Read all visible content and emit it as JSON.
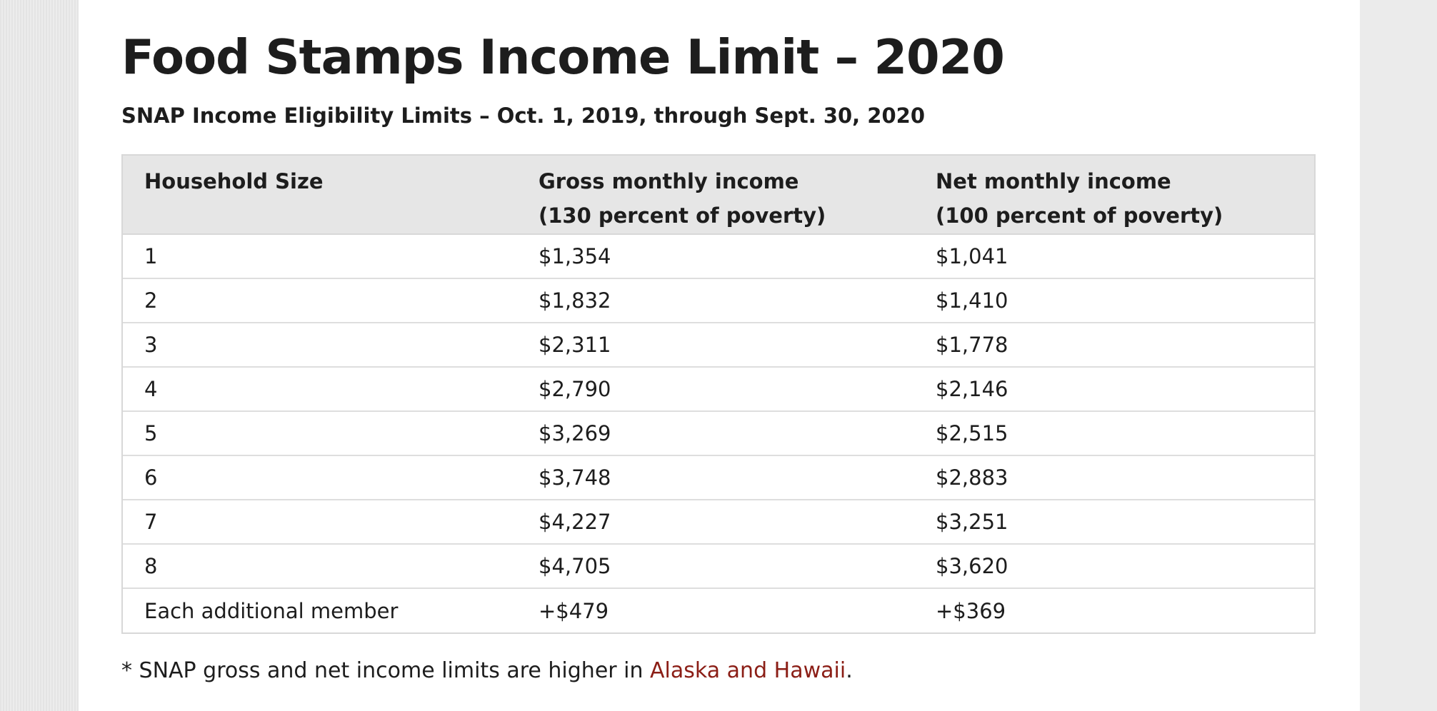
{
  "page": {
    "title": "Food Stamps Income Limit – 2020",
    "subtitle": "SNAP Income Eligibility Limits – Oct. 1, 2019, through Sept. 30, 2020"
  },
  "table": {
    "headers": {
      "household_size": "Household Size",
      "gross": {
        "line1": "Gross monthly income",
        "line2": "(130 percent of poverty)"
      },
      "net": {
        "line1": "Net monthly income",
        "line2": "(100 percent of poverty)"
      }
    },
    "rows": [
      {
        "size": "1",
        "gross": "$1,354",
        "net": "$1,041"
      },
      {
        "size": "2",
        "gross": "$1,832",
        "net": "$1,410"
      },
      {
        "size": "3",
        "gross": "$2,311",
        "net": "$1,778"
      },
      {
        "size": "4",
        "gross": "$2,790",
        "net": "$2,146"
      },
      {
        "size": "5",
        "gross": "$3,269",
        "net": "$2,515"
      },
      {
        "size": "6",
        "gross": "$3,748",
        "net": "$2,883"
      },
      {
        "size": "7",
        "gross": "$4,227",
        "net": "$3,251"
      },
      {
        "size": "8",
        "gross": "$4,705",
        "net": "$3,620"
      },
      {
        "size": "Each additional member",
        "gross": "+$479",
        "net": "+$369"
      }
    ]
  },
  "footnote": {
    "text": "* SNAP gross and net income limits are higher in ",
    "link": "Alaska and Hawaii",
    "end": "."
  },
  "colors": {
    "link": "#8b1e16",
    "header_bg": "#e6e6e6",
    "text": "#1d1d1d"
  }
}
